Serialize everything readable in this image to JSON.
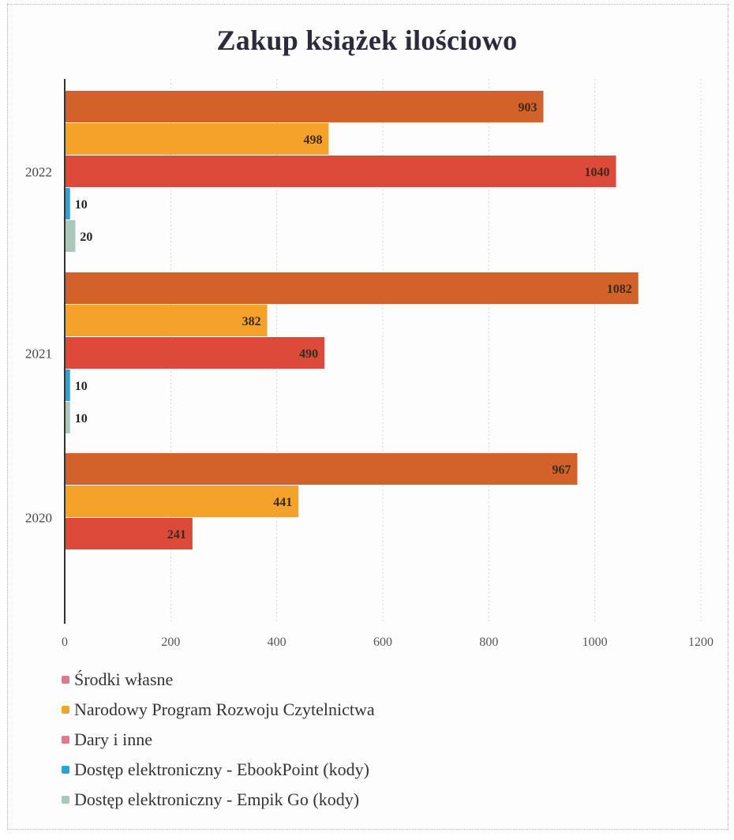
{
  "chart_data": {
    "type": "bar",
    "orientation": "horizontal",
    "title": "Zakup książek ilościowo",
    "categories": [
      "2022",
      "2021",
      "2020"
    ],
    "series": [
      {
        "name": "Środki własne",
        "color": "#d2622a",
        "legend_color": "#e07a8a",
        "values": [
          903,
          1082,
          967
        ]
      },
      {
        "name": "Narodowy Program Rozwoju Czytelnictwa",
        "color": "#f5a22a",
        "legend_color": "#f5a22a",
        "values": [
          498,
          382,
          441
        ]
      },
      {
        "name": "Dary i inne",
        "color": "#dd4a3a",
        "legend_color": "#e07a8a",
        "values": [
          1040,
          490,
          241
        ]
      },
      {
        "name": "Dostęp elektroniczny - EbookPoint (kody)",
        "color": "#2aa3d8",
        "legend_color": "#2aa3d8",
        "values": [
          10,
          10,
          null
        ]
      },
      {
        "name": "Dostęp elektroniczny - Empik Go (kody)",
        "color": "#a8c8b8",
        "legend_color": "#a8c8b8",
        "values": [
          20,
          10,
          null
        ]
      }
    ],
    "data_labels": [
      [
        "903",
        "1082",
        "967"
      ],
      [
        "498",
        "382",
        "441"
      ],
      [
        "1040",
        "490",
        "241"
      ],
      [
        "10",
        "10",
        ""
      ],
      [
        "20",
        "10",
        ""
      ]
    ],
    "xlim": [
      0,
      1200
    ],
    "xticks": [
      "0",
      "200",
      "400",
      "600",
      "800",
      "1000",
      "1200"
    ],
    "grid": "vertical",
    "legend_position": "bottom"
  }
}
